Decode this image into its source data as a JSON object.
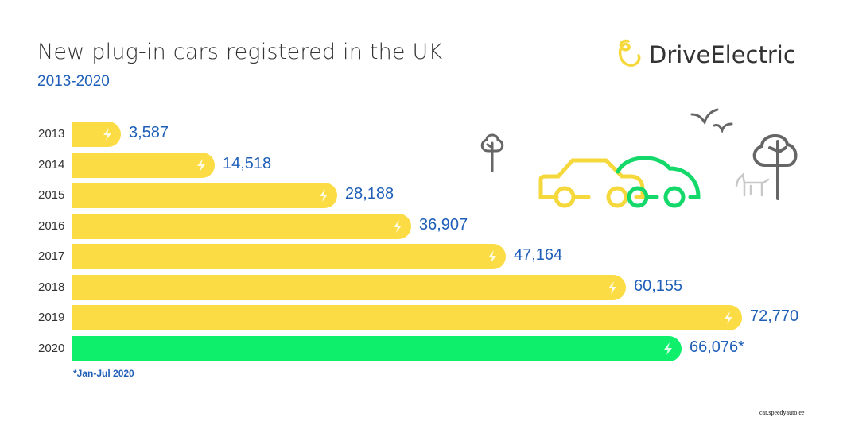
{
  "header": {
    "title": "New plug-in cars registered in the UK",
    "subtitle": "2013-2020"
  },
  "logo": {
    "text": "DriveElectric",
    "icon": "drive-electric-swirl-icon"
  },
  "footnote": "*Jan-Jul 2020",
  "watermark": "car.speedyauto.ee",
  "colors": {
    "bar": "#fcdc44",
    "highlight": "#0ef06c",
    "value_text": "#1f5fb8",
    "title": "#333333"
  },
  "chart_data": {
    "type": "bar",
    "orientation": "horizontal",
    "title": "New plug-in cars registered in the UK",
    "subtitle": "2013-2020",
    "categories": [
      "2013",
      "2014",
      "2015",
      "2016",
      "2017",
      "2018",
      "2019",
      "2020"
    ],
    "values": [
      3587,
      14518,
      28188,
      36907,
      47164,
      60155,
      72770,
      66076
    ],
    "labels": [
      "3,587",
      "14,518",
      "28,188",
      "36,907",
      "47,164",
      "60,155",
      "72,770",
      "66,076*"
    ],
    "xlabel": "",
    "ylabel": "",
    "grid": false,
    "annotations": [
      "*Jan-Jul 2020"
    ],
    "highlight_category": "2020"
  },
  "rows": [
    {
      "year": "2013",
      "label": "3,587",
      "end": 152,
      "color": "#fcdc44"
    },
    {
      "year": "2014",
      "label": "14,518",
      "end": 270,
      "color": "#fcdc44"
    },
    {
      "year": "2015",
      "label": "28,188",
      "end": 424,
      "color": "#fcdc44"
    },
    {
      "year": "2016",
      "label": "36,907",
      "end": 517,
      "color": "#fcdc44"
    },
    {
      "year": "2017",
      "label": "47,164",
      "end": 636,
      "color": "#fcdc44"
    },
    {
      "year": "2018",
      "label": "60,155",
      "end": 787,
      "color": "#fcdc44"
    },
    {
      "year": "2019",
      "label": "72,770",
      "end": 933,
      "color": "#fcdc44"
    },
    {
      "year": "2020",
      "label": "66,076*",
      "end": 857,
      "color": "#0ef06c"
    }
  ]
}
